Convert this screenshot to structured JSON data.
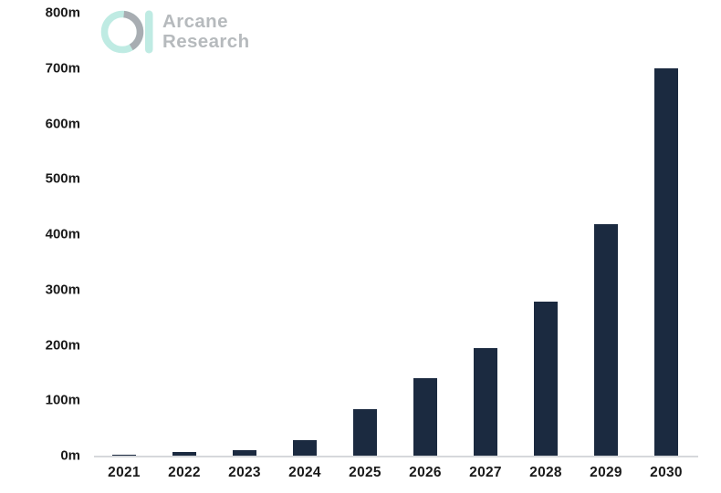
{
  "logo": {
    "line1": "Arcane",
    "line2": "Research",
    "mark_colors": {
      "mint": "#bfebe3",
      "gray": "#a8adb2"
    },
    "text_color": "#b6babd"
  },
  "chart_data": {
    "type": "bar",
    "title": "",
    "categories": [
      "2021",
      "2022",
      "2023",
      "2024",
      "2025",
      "2026",
      "2027",
      "2028",
      "2029",
      "2030"
    ],
    "values": [
      1,
      6,
      10,
      28,
      84,
      140,
      194,
      278,
      418,
      700
    ],
    "unit": "m",
    "xlabel": "",
    "ylabel": "",
    "ylim": [
      0,
      800
    ],
    "ytick_step": 100,
    "ytick_labels": [
      "0m",
      "100m",
      "200m",
      "300m",
      "400m",
      "500m",
      "600m",
      "700m",
      "800m"
    ],
    "grid": false,
    "legend": "none",
    "bar_color": "#1b2a40",
    "axis_line_color": "#d6d8db",
    "tick_text_color": "#1a1a1a"
  }
}
